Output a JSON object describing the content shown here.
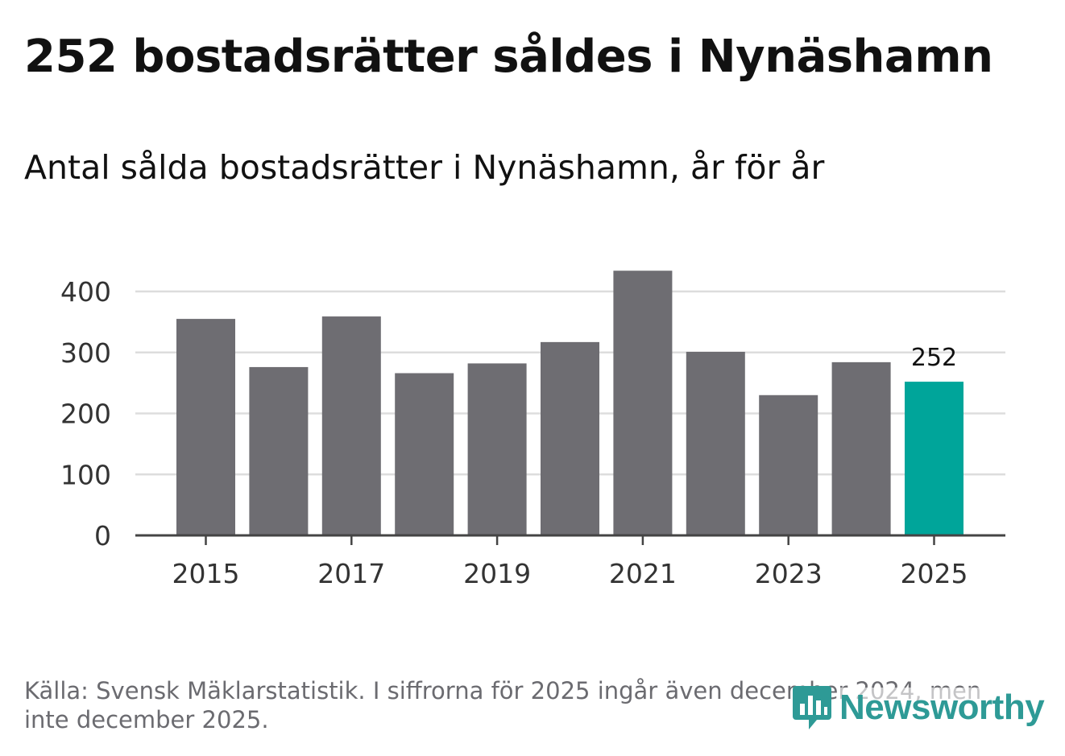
{
  "header": {
    "title": "252 bostadsrätter såldes i Nynäshamn"
  },
  "chart_data": {
    "type": "bar",
    "title": "Antal sålda bostadsrätter i Nynäshamn, år för år",
    "xlabel": "",
    "ylabel": "",
    "categories": [
      "2015",
      "2016",
      "2017",
      "2018",
      "2019",
      "2020",
      "2021",
      "2022",
      "2023",
      "2024",
      "2025"
    ],
    "values": [
      355,
      276,
      359,
      266,
      282,
      317,
      434,
      301,
      230,
      284,
      252
    ],
    "x_tick_labels": [
      "2015",
      "2017",
      "2019",
      "2021",
      "2023",
      "2025"
    ],
    "y_ticks": [
      0,
      100,
      200,
      300,
      400
    ],
    "ylim": [
      0,
      440
    ],
    "grid": true,
    "highlight_index": 10,
    "highlight_label": "252",
    "colors": {
      "bar": "#6e6d72",
      "highlight": "#00a59a",
      "grid": "#dddddd",
      "axis": "#444444"
    }
  },
  "footer": {
    "source": "Källa: Svensk Mäklarstatistik. I siffrorna för 2025 ingår även december 2024, men inte december 2025.",
    "logo_text": "Newsworthy",
    "logo_color": "#2e9a96"
  }
}
